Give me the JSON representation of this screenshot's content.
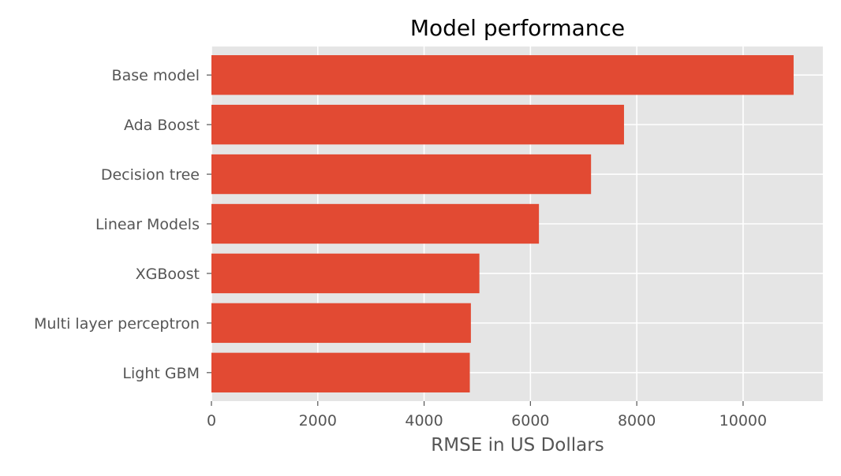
{
  "chart_data": {
    "type": "bar",
    "orientation": "horizontal",
    "title": "Model performance",
    "xlabel": "RMSE in US Dollars",
    "ylabel": "",
    "xlim": [
      0,
      11500
    ],
    "xticks": [
      0,
      2000,
      4000,
      6000,
      8000,
      10000
    ],
    "grid": true,
    "categories": [
      "Base model",
      "Ada Boost",
      "Decision tree",
      "Linear Models",
      "XGBoost",
      "Multi layer perceptron",
      "Light GBM"
    ],
    "values": [
      10950,
      7760,
      7140,
      6160,
      5040,
      4880,
      4860
    ],
    "colors": {
      "bar": "#E24A33",
      "plot_background": "#E5E5E5",
      "grid": "#FFFFFF",
      "tick_text": "#555555",
      "title_text": "#000000"
    }
  }
}
